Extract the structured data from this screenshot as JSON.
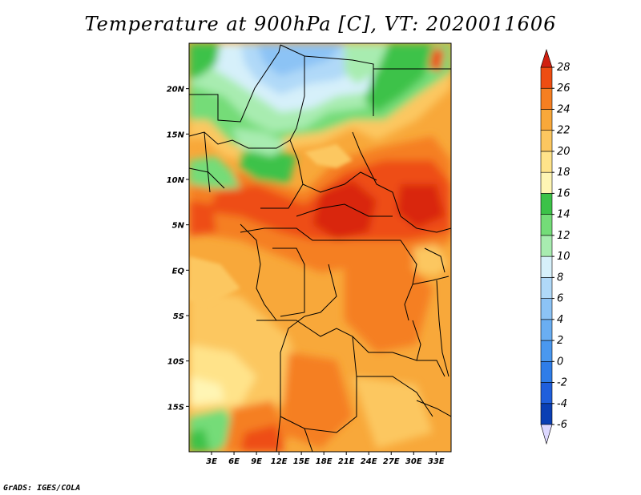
{
  "title": "Temperature at 900hPa [C], VT: 2020011606",
  "footer": "GrADS: IGES/COLA",
  "map": {
    "type": "filled-contour",
    "variable": "Temperature at 900hPa",
    "units": "C",
    "lon_range": [
      0,
      35
    ],
    "lat_range": [
      -20,
      25
    ],
    "lon_ticks": [
      {
        "value": 3,
        "label": "3E"
      },
      {
        "value": 6,
        "label": "6E"
      },
      {
        "value": 9,
        "label": "9E"
      },
      {
        "value": 12,
        "label": "12E"
      },
      {
        "value": 15,
        "label": "15E"
      },
      {
        "value": 18,
        "label": "18E"
      },
      {
        "value": 21,
        "label": "21E"
      },
      {
        "value": 24,
        "label": "24E"
      },
      {
        "value": 27,
        "label": "27E"
      },
      {
        "value": 30,
        "label": "30E"
      },
      {
        "value": 33,
        "label": "33E"
      }
    ],
    "lat_ticks": [
      {
        "value": 20,
        "label": "20N"
      },
      {
        "value": 15,
        "label": "15N"
      },
      {
        "value": 10,
        "label": "10N"
      },
      {
        "value": 5,
        "label": "5N"
      },
      {
        "value": 0,
        "label": "EQ"
      },
      {
        "value": -5,
        "label": "5S"
      },
      {
        "value": -10,
        "label": "10S"
      },
      {
        "value": -15,
        "label": "15S"
      }
    ]
  },
  "colorbar": {
    "levels": [
      "-6",
      "-4",
      "-2",
      "0",
      "2",
      "4",
      "6",
      "8",
      "10",
      "12",
      "14",
      "16",
      "18",
      "20",
      "22",
      "24",
      "26",
      "28"
    ],
    "colors": [
      "#0a0a78",
      "#0a3fb4",
      "#1f5fdc",
      "#2f7de8",
      "#4a98ef",
      "#6aaef2",
      "#8cc3f5",
      "#b0d9f8",
      "#d6f0fa",
      "#a8ecb0",
      "#74dc78",
      "#3cc248",
      "#fff5b4",
      "#ffe38a",
      "#fcc760",
      "#f8a83a",
      "#f57f22",
      "#ee4d12",
      "#d92608"
    ],
    "under_color": "#ddd8ff",
    "over_color": "#d02010"
  }
}
